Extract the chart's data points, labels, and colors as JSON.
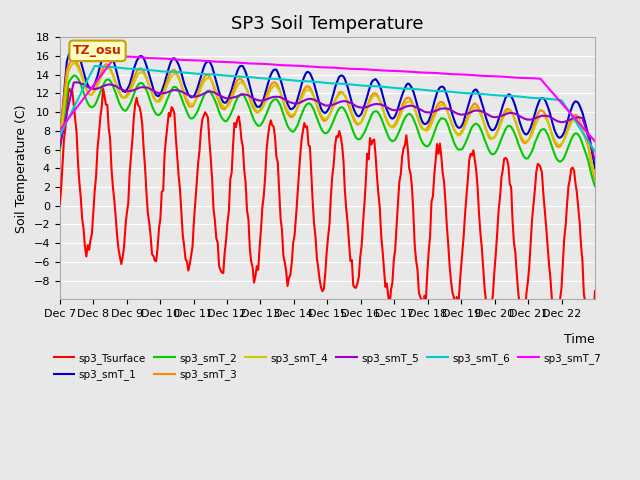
{
  "title": "SP3 Soil Temperature",
  "xlabel": "Time",
  "ylabel": "Soil Temperature (C)",
  "ylim": [
    -10,
    18
  ],
  "xlim": [
    0,
    16
  ],
  "x_tick_labels": [
    "Dec 7",
    "Dec 8",
    "Dec 9",
    "Dec 10",
    "Dec 11",
    "Dec 12",
    "Dec 13",
    "Dec 14",
    "Dec 15",
    "Dec 16",
    "Dec 17",
    "Dec 18",
    "Dec 19",
    "Dec 20",
    "Dec 21",
    "Dec 22"
  ],
  "background_color": "#e8e8e8",
  "plot_bg_color": "#e8e8e8",
  "annotation_text": "TZ_osu",
  "annotation_bg": "#ffffc0",
  "annotation_border": "#c8a000",
  "series_names": [
    "sp3_Tsurface",
    "sp3_smT_1",
    "sp3_smT_2",
    "sp3_smT_3",
    "sp3_smT_4",
    "sp3_smT_5",
    "sp3_smT_6",
    "sp3_smT_7"
  ],
  "series_colors": [
    "#ff0000",
    "#0000cc",
    "#00cc00",
    "#ff8800",
    "#cccc00",
    "#9900cc",
    "#00cccc",
    "#ff00ff"
  ],
  "linewidth": 1.5,
  "title_fontsize": 13,
  "tick_fontsize": 8,
  "label_fontsize": 9
}
